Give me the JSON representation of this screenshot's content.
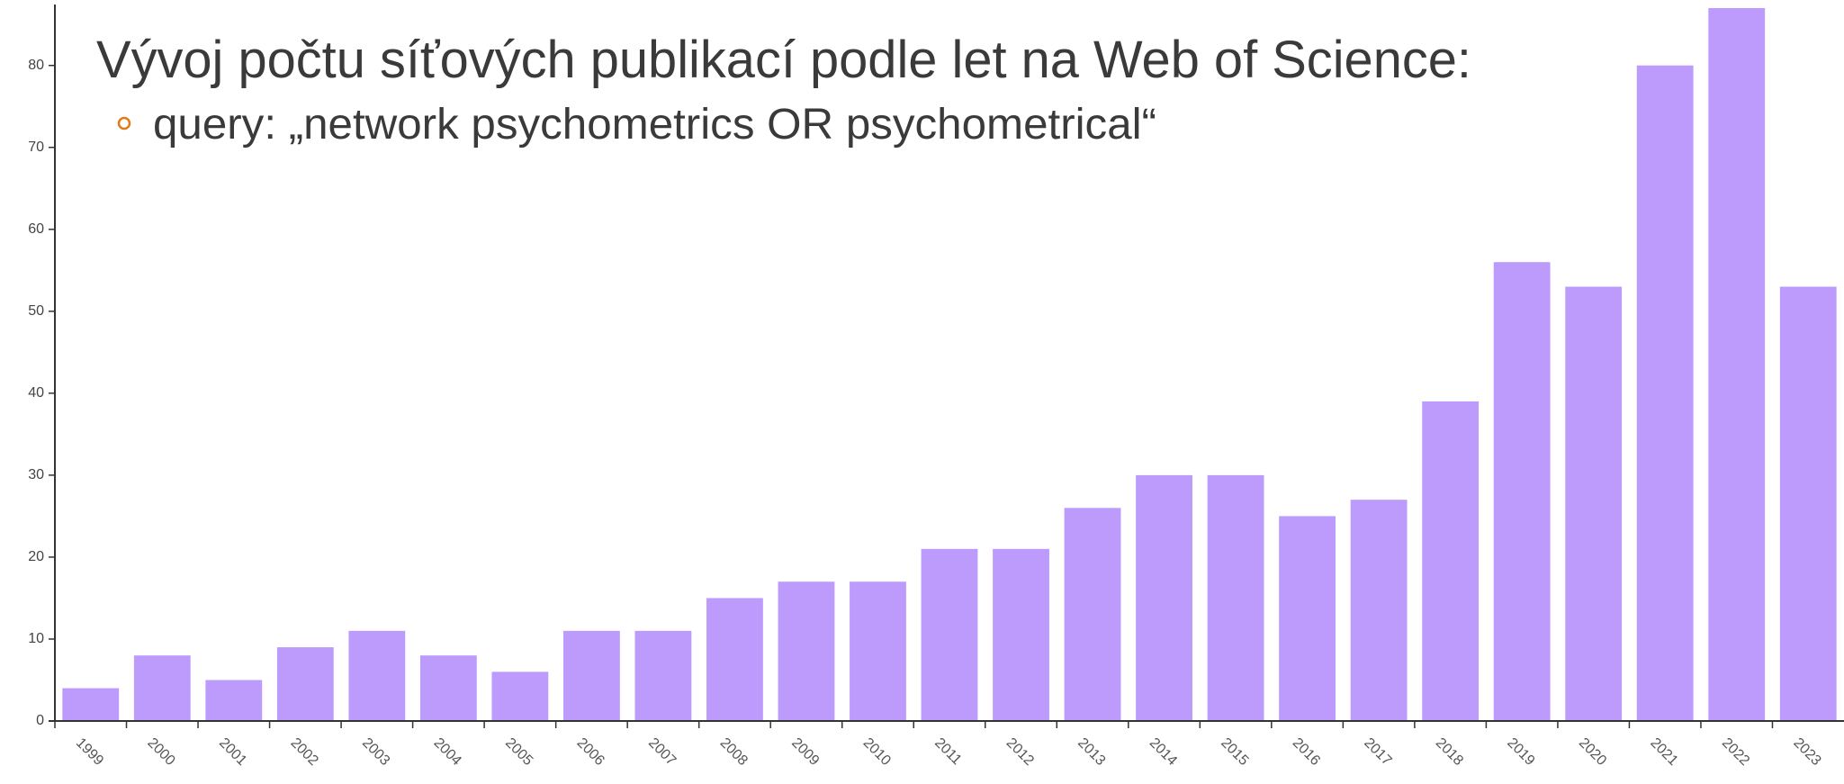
{
  "chart_data": {
    "type": "bar",
    "title": "Vývoj počtu síťových publikací podle let na Web of Science:",
    "subtitle": "query: „network psychometrics OR psychometrical“",
    "categories": [
      "1999",
      "2000",
      "2001",
      "2002",
      "2003",
      "2004",
      "2005",
      "2006",
      "2007",
      "2008",
      "2009",
      "2010",
      "2011",
      "2012",
      "2013",
      "2014",
      "2015",
      "2016",
      "2017",
      "2018",
      "2019",
      "2020",
      "2021",
      "2022",
      "2023"
    ],
    "values": [
      4,
      8,
      5,
      9,
      11,
      8,
      6,
      11,
      11,
      15,
      17,
      17,
      21,
      21,
      26,
      30,
      30,
      25,
      27,
      39,
      56,
      53,
      80,
      87,
      53
    ],
    "color": "#bc9bfd",
    "ylim": [
      0,
      87
    ],
    "yticks": [
      0,
      10,
      20,
      30,
      40,
      50,
      60,
      70,
      80
    ],
    "grid": false
  }
}
